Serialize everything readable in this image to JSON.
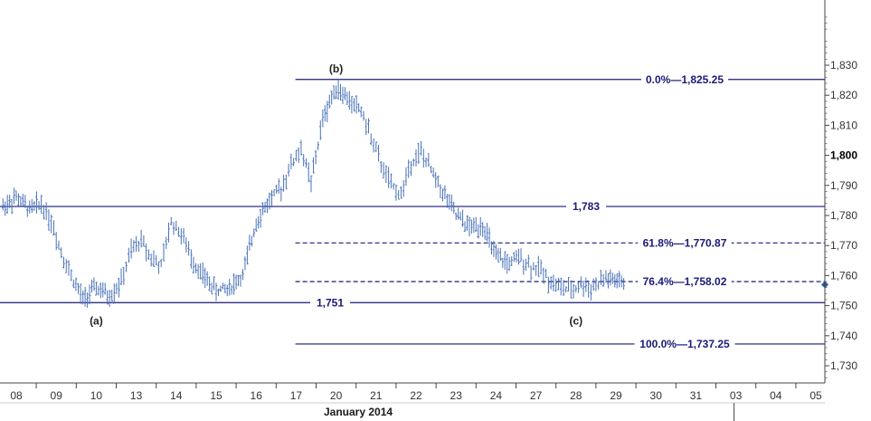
{
  "chart_data": {
    "type": "bar",
    "style": "ohlc",
    "month_label": "January 2014",
    "x_ticks": [
      "08",
      "09",
      "10",
      "13",
      "14",
      "15",
      "16",
      "17",
      "20",
      "21",
      "22",
      "23",
      "24",
      "27",
      "28",
      "29",
      "30",
      "31",
      "03",
      "04",
      "05"
    ],
    "y_ticks": [
      1730,
      1740,
      1750,
      1760,
      1770,
      1780,
      1790,
      1800,
      1810,
      1820,
      1830
    ],
    "y_tick_labels": [
      "1,730",
      "1,740",
      "1,750",
      "1,760",
      "1,770",
      "1,780",
      "1,790",
      "1,800",
      "1,810",
      "1,820",
      "1,830"
    ],
    "ylim": [
      1724,
      1850
    ],
    "grid": false,
    "colors": {
      "bars": "#4a72b8",
      "lines": "#1a1a7a",
      "text": "#1a1a7a",
      "marker": "#2a5aa0"
    },
    "price_marker": 1757,
    "support_resistance": [
      {
        "level": 1783,
        "label": "1,783"
      },
      {
        "level": 1751,
        "label": "1,751"
      }
    ],
    "fibonacci": [
      {
        "level": 1825.25,
        "label": "0.0%—1,825.25",
        "style": "solid"
      },
      {
        "level": 1770.87,
        "label": "61.8%—1,770.87",
        "style": "dashed"
      },
      {
        "level": 1758.02,
        "label": "76.4%—1,758.02",
        "style": "dashed"
      },
      {
        "level": 1737.25,
        "label": "100.0%—1,737.25",
        "style": "solid"
      }
    ],
    "wave_labels": [
      {
        "text": "(a)",
        "day": "10",
        "price": 1751
      },
      {
        "text": "(b)",
        "day": "20",
        "price": 1825.25
      },
      {
        "text": "(c)",
        "day": "28",
        "price": 1751
      }
    ],
    "bar_path": [
      [
        "08",
        1783
      ],
      [
        "08",
        1786
      ],
      [
        "08",
        1782
      ],
      [
        "09",
        1784
      ],
      [
        "09",
        1778
      ],
      [
        "09",
        1768
      ],
      [
        "09",
        1760
      ],
      [
        "10",
        1752
      ],
      [
        "10",
        1756
      ],
      [
        "10",
        1753
      ],
      [
        "13",
        1758
      ],
      [
        "13",
        1768
      ],
      [
        "13",
        1772
      ],
      [
        "13",
        1766
      ],
      [
        "14",
        1763
      ],
      [
        "14",
        1778
      ],
      [
        "14",
        1774
      ],
      [
        "14",
        1766
      ],
      [
        "15",
        1760
      ],
      [
        "15",
        1755
      ],
      [
        "15",
        1756
      ],
      [
        "16",
        1760
      ],
      [
        "16",
        1778
      ],
      [
        "16",
        1785
      ],
      [
        "17",
        1789
      ],
      [
        "17",
        1797
      ],
      [
        "17",
        1802
      ],
      [
        "17",
        1791
      ],
      [
        "20",
        1812
      ],
      [
        "20",
        1823
      ],
      [
        "20",
        1818
      ],
      [
        "21",
        1815
      ],
      [
        "21",
        1806
      ],
      [
        "21",
        1797
      ],
      [
        "21",
        1790
      ],
      [
        "22",
        1787
      ],
      [
        "22",
        1798
      ],
      [
        "22",
        1801
      ],
      [
        "22",
        1795
      ],
      [
        "23",
        1788
      ],
      [
        "23",
        1780
      ],
      [
        "23",
        1776
      ],
      [
        "24",
        1777
      ],
      [
        "24",
        1766
      ],
      [
        "24",
        1764
      ],
      [
        "27",
        1766
      ],
      [
        "27",
        1763
      ],
      [
        "27",
        1762
      ],
      [
        "27",
        1758
      ],
      [
        "28",
        1756
      ],
      [
        "28",
        1755
      ],
      [
        "28",
        1757
      ],
      [
        "28",
        1756
      ],
      [
        "29",
        1759
      ],
      [
        "29",
        1757
      ]
    ]
  }
}
